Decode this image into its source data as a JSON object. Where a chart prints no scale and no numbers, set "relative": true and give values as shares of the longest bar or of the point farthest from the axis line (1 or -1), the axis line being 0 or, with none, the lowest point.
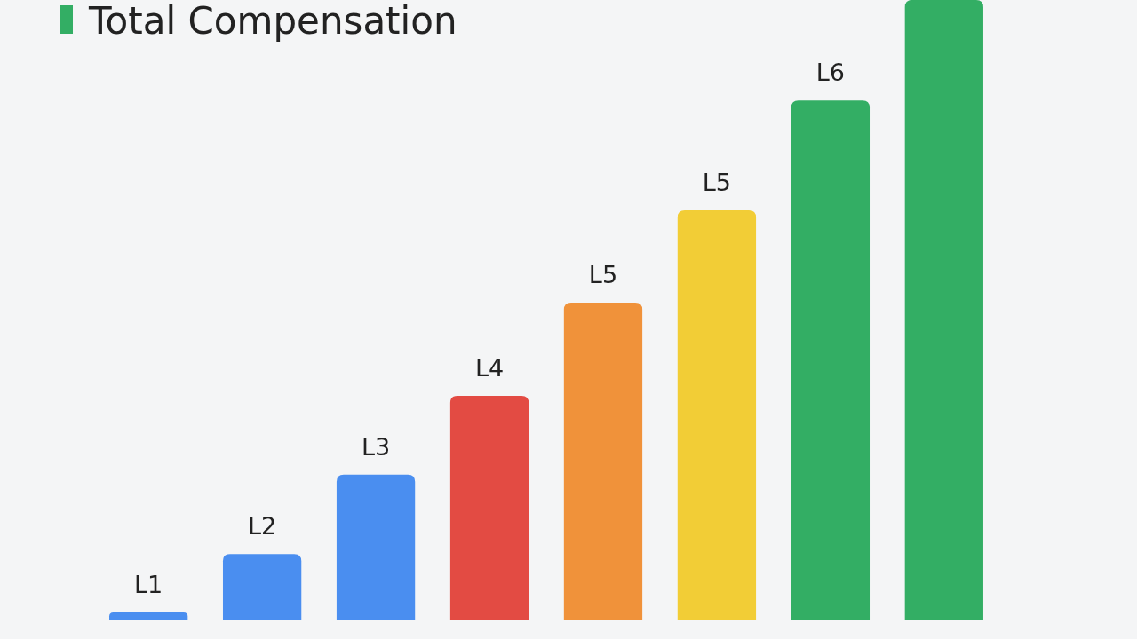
{
  "chart_data": {
    "type": "bar",
    "title": "Total Compensation",
    "relative": true,
    "categories": [
      "L1",
      "L2",
      "L3",
      "L4",
      "L5",
      "L5",
      "L6",
      null
    ],
    "values": [
      0.013,
      0.107,
      0.235,
      0.362,
      0.512,
      0.661,
      0.838,
      1
    ],
    "colors": [
      "#4a8ef0",
      "#4a8ef0",
      "#4a8ef0",
      "#e34b43",
      "#f0923a",
      "#f2cd36",
      "#33ae64",
      "#33ae64"
    ]
  }
}
